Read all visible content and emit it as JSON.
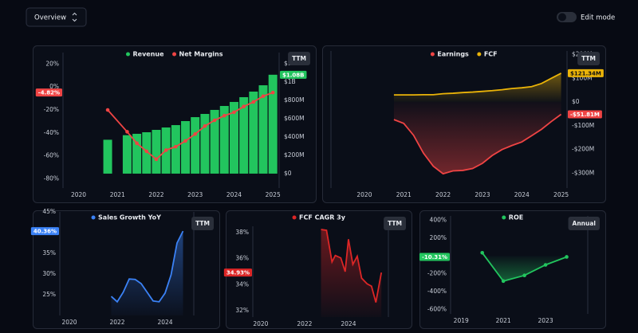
{
  "header": {
    "view": "Overview",
    "toggle_label": "Edit mode"
  },
  "chart_data": [
    {
      "type": "combo",
      "button": "TTM",
      "x": [
        2020.75,
        2021.25,
        2021.5,
        2021.75,
        2022,
        2022.25,
        2022.5,
        2022.75,
        2023,
        2023.25,
        2023.5,
        2023.75,
        2024,
        2024.25,
        2024.5,
        2024.75,
        2025
      ],
      "series": [
        {
          "name": "Revenue",
          "type": "bar",
          "axis": "y2",
          "color": "#22c55e",
          "values": [
            370,
            420,
            435,
            452,
            478,
            504,
            530,
            574,
            617,
            652,
            696,
            739,
            783,
            835,
            896,
            965,
            1080
          ],
          "value_labels": [
            null,
            null,
            null,
            null,
            null,
            null,
            null,
            null,
            null,
            null,
            null,
            null,
            null,
            null,
            null,
            null,
            "$1.08B"
          ]
        },
        {
          "name": "Net Margins",
          "type": "line",
          "markers": true,
          "color": "#ef4444",
          "values": [
            -20,
            -39,
            -49,
            -56,
            -63,
            -55,
            -52,
            -47,
            -41,
            -34,
            -29,
            -25,
            -22,
            -17,
            -13,
            -8,
            -4.82
          ],
          "value_labels": [
            null,
            null,
            null,
            null,
            null,
            null,
            null,
            null,
            null,
            null,
            null,
            null,
            null,
            null,
            null,
            null,
            "-4.82%"
          ]
        }
      ],
      "xlim": [
        2019.6,
        2025.16
      ],
      "xticks": [
        2020,
        2021,
        2022,
        2023,
        2024,
        2025
      ],
      "ylim": [
        -88,
        30
      ],
      "yticks": [
        {
          "value": 20,
          "label": "20%"
        },
        {
          "value": 0,
          "label": "0%"
        },
        {
          "value": -20,
          "label": "-20%"
        },
        {
          "value": -40,
          "label": "-40%"
        },
        {
          "value": -60,
          "label": "-60%"
        },
        {
          "value": -80,
          "label": "-80%"
        }
      ],
      "y2lim": [
        -157,
        1322
      ],
      "y2ticks": [
        {
          "value": 0,
          "label": "$0"
        },
        {
          "value": 200,
          "label": "$200M"
        },
        {
          "value": 400,
          "label": "$400M"
        },
        {
          "value": 600,
          "label": "$600M"
        },
        {
          "value": 800,
          "label": "$800M"
        },
        {
          "value": 1000,
          "label": "$1B"
        },
        {
          "value": 1200,
          "label": "$1.2B"
        }
      ]
    },
    {
      "type": "area",
      "button": "TTM",
      "x": [
        2020.75,
        2021,
        2021.25,
        2021.5,
        2021.75,
        2022,
        2022.25,
        2022.5,
        2022.75,
        2023,
        2023.25,
        2023.5,
        2023.75,
        2024,
        2024.25,
        2024.5,
        2024.75,
        2025
      ],
      "series": [
        {
          "name": "Earnings",
          "color": "#ef4444",
          "values": [
            -74,
            -90,
            -140,
            -215,
            -270,
            -302,
            -290,
            -288,
            -280,
            -258,
            -225,
            -200,
            -183,
            -168,
            -142,
            -115,
            -82,
            -51.81
          ],
          "value_labels": [
            null,
            null,
            null,
            null,
            null,
            null,
            null,
            null,
            null,
            null,
            null,
            null,
            null,
            null,
            null,
            null,
            null,
            "-$51.81M"
          ]
        },
        {
          "name": "FCF",
          "color": "#eab308",
          "values": [
            30,
            30,
            30,
            31,
            31,
            35,
            37,
            40,
            42,
            45,
            48,
            52,
            57,
            60,
            65,
            78,
            100,
            121.34
          ],
          "value_labels": [
            null,
            null,
            null,
            null,
            null,
            null,
            null,
            null,
            null,
            null,
            null,
            null,
            null,
            null,
            null,
            null,
            null,
            "$121.34M"
          ]
        }
      ],
      "xlim": [
        2019.15,
        2025.15
      ],
      "xticks": [
        2020,
        2021,
        2022,
        2023,
        2024,
        2025
      ],
      "ylim": [
        -362,
        215
      ],
      "yticks": [
        {
          "value": 200,
          "label": "$200M"
        },
        {
          "value": 100,
          "label": "$100M"
        },
        {
          "value": 0,
          "label": "$0"
        },
        {
          "value": -100,
          "label": "-$100M"
        },
        {
          "value": -200,
          "label": "-$200M"
        },
        {
          "value": -300,
          "label": "-$300M"
        }
      ]
    },
    {
      "type": "area",
      "button": "TTM",
      "x": [
        2021.75,
        2022,
        2022.25,
        2022.5,
        2022.75,
        2023,
        2023.25,
        2023.5,
        2023.75,
        2024,
        2024.25,
        2024.5,
        2024.75
      ],
      "series": [
        {
          "name": "Sales Growth YoY",
          "color": "#3b82f6",
          "values": [
            24.6,
            23.3,
            25.6,
            28.8,
            28.7,
            27.7,
            25.6,
            23.5,
            23.3,
            25.4,
            29.8,
            37.5,
            40.36
          ],
          "value_labels": [
            null,
            null,
            null,
            null,
            null,
            null,
            null,
            null,
            null,
            null,
            null,
            null,
            "40.36%"
          ]
        }
      ],
      "xlim": [
        2019.6,
        2025.2
      ],
      "xticks": [
        2020,
        2022,
        2024
      ],
      "ylim": [
        20,
        45
      ],
      "yticks": [
        {
          "value": 45,
          "label": "45%"
        },
        {
          "value": 40,
          "label": "40%"
        },
        {
          "value": 35,
          "label": "35%"
        },
        {
          "value": 30,
          "label": "30%"
        },
        {
          "value": 25,
          "label": "25%"
        }
      ]
    },
    {
      "type": "area",
      "button": "TTM",
      "x": [
        2022.75,
        2023,
        2023.25,
        2023.4,
        2023.65,
        2023.85,
        2024,
        2024.2,
        2024.4,
        2024.6,
        2024.85,
        2025.05,
        2025.25,
        2025.5
      ],
      "series": [
        {
          "name": "FCF CAGR 3y",
          "color": "#dc2626",
          "values": [
            38.25,
            38.19,
            35.75,
            36.25,
            36.06,
            35.0,
            37.5,
            35.56,
            36.19,
            34.5,
            34.06,
            33.88,
            32.63,
            34.93
          ],
          "value_labels": [
            null,
            null,
            null,
            null,
            null,
            null,
            null,
            null,
            null,
            null,
            null,
            null,
            null,
            "34.93%"
          ]
        }
      ],
      "xlim": [
        2019.64,
        2025.82
      ],
      "xticks": [
        2020,
        2022,
        2024
      ],
      "ylim": [
        31.5,
        38.5
      ],
      "yticks": [
        {
          "value": 38,
          "label": "38%"
        },
        {
          "value": 36,
          "label": "36%"
        },
        {
          "value": 34,
          "label": "34%"
        },
        {
          "value": 32,
          "label": "32%"
        }
      ]
    },
    {
      "type": "area",
      "button": "Annual",
      "x": [
        2020,
        2021,
        2022,
        2023,
        2024
      ],
      "series": [
        {
          "name": "ROE",
          "markers": true,
          "color": "#22c55e",
          "values": [
            36,
            -282,
            -218,
            -100,
            -10.31
          ],
          "value_labels": [
            null,
            null,
            null,
            null,
            "-10.31%"
          ]
        }
      ],
      "xlim": [
        2018.5,
        2025
      ],
      "xticks": [
        2019,
        2021,
        2023
      ],
      "ylim": [
        -650,
        450
      ],
      "yticks": [
        {
          "value": 400,
          "label": "400%"
        },
        {
          "value": 200,
          "label": "200%"
        },
        {
          "value": 0,
          "label": "0%"
        },
        {
          "value": -200,
          "label": "-200%"
        },
        {
          "value": -400,
          "label": "-400%"
        },
        {
          "value": -600,
          "label": "-600%"
        }
      ]
    }
  ]
}
